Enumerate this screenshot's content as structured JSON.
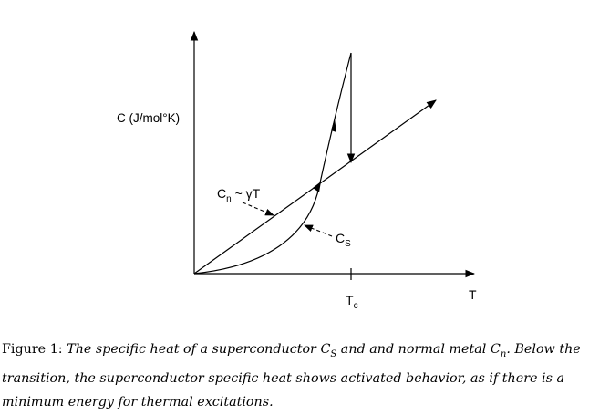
{
  "axes": {
    "y_label": "C (J/mol°K)",
    "x_label": "T",
    "tc_label": "T",
    "tc_sub": "c"
  },
  "labels": {
    "cn_main": "C",
    "cn_sub": "n",
    "cn_rest": " ~ γT",
    "cs_main": "C",
    "cs_sub": "S"
  },
  "caption": {
    "prefix": "Figure 1: ",
    "part1": "The specific heat of a superconductor ",
    "cs": "C",
    "cs_sub": "S",
    "part2": " and and normal metal ",
    "cn": "C",
    "cn_sub": "n",
    "part3": ". Below the transition, the superconductor specific heat shows activated behavior, as if there is a minimum energy for thermal excitations."
  }
}
